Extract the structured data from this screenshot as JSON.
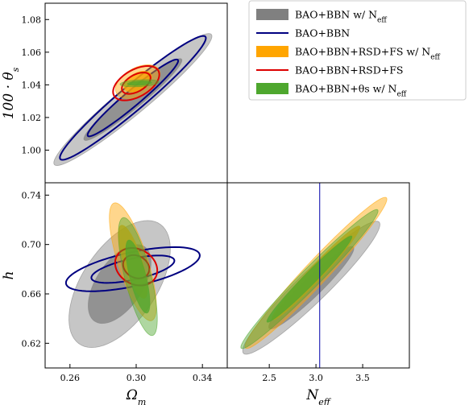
{
  "chart_data": {
    "type": "triangle-contour",
    "legend": {
      "placement": "top-right",
      "entries": [
        {
          "text": "BAO+BBN w/ N",
          "sub": "eff",
          "kind": "fill",
          "color": "#808080"
        },
        {
          "text": "BAO+BBN",
          "sub": "",
          "kind": "line",
          "color": "#000080"
        },
        {
          "text": "BAO+BBN+RSD+FS w/ N",
          "sub": "eff",
          "kind": "fill",
          "color": "#ffa500"
        },
        {
          "text": "BAO+BBN+RSD+FS",
          "sub": "",
          "kind": "line",
          "color": "#dd0000"
        },
        {
          "text": "BAO+BBN+θs w/ N",
          "sub": "eff",
          "kind": "fill",
          "color": "#4ea72e"
        }
      ]
    },
    "axis_labels": {
      "omega_m": {
        "main": "Ω",
        "sub": "m"
      },
      "n_eff": {
        "main": "N",
        "sub": "eff"
      },
      "h": {
        "main": "h",
        "sub": ""
      },
      "theta_s": {
        "main": "100 · θ",
        "sub": "s"
      }
    },
    "panels": [
      {
        "name": "omegam-theta",
        "xlim": [
          0.245,
          0.355
        ],
        "ylim": [
          0.98,
          1.09
        ],
        "xticks": [],
        "yticks": [
          "1.00",
          "1.02",
          "1.04",
          "1.06",
          "1.08"
        ],
        "contours": [
          {
            "series": "BAO+BBN w/ Neff",
            "kind": "fill",
            "color": "#808080",
            "center": [
              0.298,
              1.031
            ],
            "sx": 0.0195,
            "sy": 0.0165,
            "rho": 0.96
          },
          {
            "series": "BAO+BBN",
            "kind": "line",
            "color": "#000080",
            "center": [
              0.298,
              1.032
            ],
            "sx": 0.018,
            "sy": 0.0155,
            "rho": 0.965
          },
          {
            "series": "BAO+BBN+RSD+FS w/ Neff",
            "kind": "fill",
            "color": "#ffa500",
            "center": [
              0.301,
              1.042
            ],
            "sx": 0.0055,
            "sy": 0.0042,
            "rho": 0.45
          },
          {
            "series": "BAO+BBN+RSD+FS",
            "kind": "line",
            "color": "#dd0000",
            "center": [
              0.3,
              1.041
            ],
            "sx": 0.0057,
            "sy": 0.0043,
            "rho": 0.5
          },
          {
            "series": "BAO+BBN+θs w/ Neff",
            "kind": "fill",
            "color": "#4ea72e",
            "center": [
              0.302,
              1.041
            ],
            "sx": 0.0048,
            "sy": 0.0009,
            "rho": 0.3
          }
        ]
      },
      {
        "name": "omegam-h",
        "xlim": [
          0.245,
          0.355
        ],
        "ylim": [
          0.6,
          0.75
        ],
        "xticks": [
          "0.26",
          "0.30",
          "0.34"
        ],
        "yticks": [
          "0.62",
          "0.66",
          "0.70",
          "0.74"
        ],
        "contours": [
          {
            "series": "BAO+BBN w/ Neff",
            "kind": "fill",
            "color": "#808080",
            "center": [
              0.29,
              0.668
            ],
            "sx": 0.0125,
            "sy": 0.021,
            "rho": 0.55
          },
          {
            "series": "BAO+BBN",
            "kind": "line",
            "color": "#000080",
            "center": [
              0.298,
              0.68
            ],
            "sx": 0.0165,
            "sy": 0.0073,
            "rho": 0.62
          },
          {
            "series": "BAO+BBN+RSD+FS w/ Neff",
            "kind": "fill",
            "color": "#ffa500",
            "center": [
              0.298,
              0.686
            ],
            "sx": 0.0058,
            "sy": 0.0195,
            "rho": -0.75
          },
          {
            "series": "BAO+BBN+RSD+FS",
            "kind": "line",
            "color": "#dd0000",
            "center": [
              0.3,
              0.682
            ],
            "sx": 0.0052,
            "sy": 0.0062,
            "rho": -0.2
          },
          {
            "series": "BAO+BBN+θs w/ Neff",
            "kind": "fill",
            "color": "#4ea72e",
            "center": [
              0.301,
              0.674
            ],
            "sx": 0.0048,
            "sy": 0.0195,
            "rho": -0.72
          }
        ]
      },
      {
        "name": "neff-h",
        "xlim": [
          2.05,
          4.0
        ],
        "ylim": [
          0.6,
          0.75
        ],
        "xticks": [
          "2.5",
          "3.0",
          "3.5"
        ],
        "yticks": [],
        "vline": {
          "x": 3.04,
          "color": "#0000aa"
        },
        "contours": [
          {
            "series": "BAO+BBN w/ Neff",
            "kind": "fill",
            "color": "#808080",
            "center": [
              2.95,
              0.665
            ],
            "sx": 0.3,
            "sy": 0.022,
            "rho": 0.95
          },
          {
            "series": "BAO+BBN+RSD+FS w/ Neff",
            "kind": "fill",
            "color": "#ffa500",
            "center": [
              3.0,
              0.677
            ],
            "sx": 0.31,
            "sy": 0.025,
            "rho": 0.975
          },
          {
            "series": "BAO+BBN+θs w/ Neff",
            "kind": "fill",
            "color": "#4ea72e",
            "center": [
              2.93,
              0.672
            ],
            "sx": 0.3,
            "sy": 0.023,
            "rho": 0.98
          }
        ]
      }
    ]
  }
}
